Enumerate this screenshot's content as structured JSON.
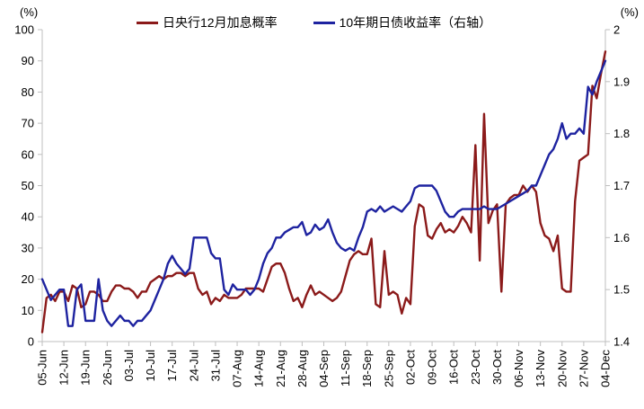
{
  "chart_data": {
    "type": "line",
    "title": "",
    "legend_position": "top-center",
    "grid": false,
    "x_tick_labels": [
      "05-Jun",
      "12-Jun",
      "19-Jun",
      "26-Jun",
      "03-Jul",
      "10-Jul",
      "17-Jul",
      "24-Jul",
      "31-Jul",
      "07-Aug",
      "14-Aug",
      "21-Aug",
      "28-Aug",
      "04-Sep",
      "11-Sep",
      "18-Sep",
      "25-Sep",
      "02-Oct",
      "09-Oct",
      "16-Oct",
      "23-Oct",
      "30-Oct",
      "06-Nov",
      "13-Nov",
      "20-Nov",
      "27-Nov",
      "04-Dec"
    ],
    "points_per_tick": 5,
    "axis_color": "#bfbfbf",
    "tick_label_color": "#000000",
    "left_axis": {
      "unit": "(%)",
      "min": 0,
      "max": 100,
      "tick_labels": [
        "0",
        "10",
        "20",
        "30",
        "40",
        "50",
        "60",
        "70",
        "80",
        "90",
        "100"
      ]
    },
    "right_axis": {
      "unit": "(%)",
      "min": 1.4,
      "max": 2,
      "tick_labels": [
        "1.4",
        "1.5",
        "1.6",
        "1.7",
        "1.8",
        "1.9",
        "2"
      ]
    },
    "series": [
      {
        "name": "日央行12月加息概率",
        "axis": "left",
        "color": "#8B1A1A",
        "values": [
          3,
          14,
          15,
          13,
          16,
          16,
          13,
          18,
          17,
          11,
          12,
          16,
          16,
          15,
          13,
          13,
          16,
          18,
          18,
          17,
          17,
          16,
          14,
          16,
          16,
          19,
          20,
          21,
          20,
          21,
          21,
          22,
          22,
          21,
          22,
          22,
          17,
          15,
          16,
          12,
          14,
          13,
          15,
          14,
          14,
          14,
          15,
          17,
          17,
          17,
          17,
          16,
          20,
          24,
          25,
          25,
          22,
          17,
          13,
          14,
          11,
          15,
          18,
          15,
          16,
          15,
          14,
          13,
          14,
          16,
          21,
          26,
          28,
          29,
          28,
          28,
          33,
          12,
          11,
          29,
          15,
          16,
          15,
          9,
          14,
          12,
          37,
          44,
          43,
          34,
          33,
          36,
          38,
          35,
          36,
          35,
          37,
          40,
          38,
          35,
          63,
          26,
          73,
          38,
          42,
          44,
          16,
          44,
          46,
          47,
          47,
          50,
          48,
          50,
          48,
          38,
          34,
          33,
          29,
          34,
          17,
          16,
          16,
          45,
          58,
          59,
          60,
          82,
          78,
          86,
          93
        ]
      },
      {
        "name": "10年期日债收益率（右轴）",
        "axis": "right",
        "color": "#1E23A0",
        "values": [
          1.52,
          1.5,
          1.48,
          1.49,
          1.5,
          1.5,
          1.43,
          1.43,
          1.5,
          1.51,
          1.44,
          1.44,
          1.44,
          1.52,
          1.46,
          1.44,
          1.43,
          1.44,
          1.45,
          1.44,
          1.44,
          1.43,
          1.44,
          1.44,
          1.45,
          1.46,
          1.48,
          1.5,
          1.52,
          1.55,
          1.565,
          1.55,
          1.54,
          1.53,
          1.54,
          1.6,
          1.6,
          1.6,
          1.6,
          1.57,
          1.56,
          1.56,
          1.5,
          1.49,
          1.51,
          1.5,
          1.5,
          1.5,
          1.49,
          1.5,
          1.52,
          1.55,
          1.57,
          1.58,
          1.6,
          1.6,
          1.61,
          1.615,
          1.62,
          1.62,
          1.63,
          1.605,
          1.61,
          1.625,
          1.615,
          1.62,
          1.635,
          1.61,
          1.59,
          1.58,
          1.575,
          1.58,
          1.575,
          1.6,
          1.62,
          1.65,
          1.655,
          1.65,
          1.66,
          1.65,
          1.655,
          1.66,
          1.655,
          1.65,
          1.66,
          1.67,
          1.695,
          1.7,
          1.7,
          1.7,
          1.7,
          1.69,
          1.67,
          1.65,
          1.64,
          1.64,
          1.65,
          1.655,
          1.655,
          1.655,
          1.655,
          1.655,
          1.66,
          1.655,
          1.655,
          1.655,
          1.66,
          1.665,
          1.67,
          1.675,
          1.68,
          1.685,
          1.69,
          1.7,
          1.7,
          1.72,
          1.74,
          1.76,
          1.77,
          1.79,
          1.82,
          1.79,
          1.8,
          1.8,
          1.81,
          1.8,
          1.89,
          1.875,
          1.9,
          1.92,
          1.94
        ]
      }
    ]
  }
}
